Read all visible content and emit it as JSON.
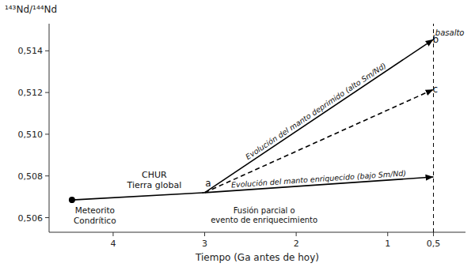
{
  "chart_data": {
    "type": "line",
    "xlabel": "Tiempo (Ga antes de hoy)",
    "ylabel": "¹⁴³Nd/¹⁴⁴Nd",
    "xlim": [
      4.7,
      0.15
    ],
    "ylim": [
      0.5053,
      0.5153
    ],
    "xticks": [
      4,
      3,
      2,
      1,
      {
        "value": 0.5,
        "label": "0,5"
      }
    ],
    "yticks": [
      {
        "value": 0.506,
        "label": "0,506"
      },
      {
        "value": 0.508,
        "label": "0,508"
      },
      {
        "value": 0.51,
        "label": "0,510"
      },
      {
        "value": 0.512,
        "label": "0,512"
      },
      {
        "value": 0.514,
        "label": "0,514"
      }
    ],
    "background_color": "#ffffff",
    "color": "#000000",
    "grid": false,
    "series": [
      {
        "x": [
          4.45,
          3.0
        ],
        "values": [
          0.50685,
          0.5072
        ],
        "line_style": "solid"
      },
      {
        "x": [
          3.0,
          0.5
        ],
        "values": [
          0.5072,
          0.50795
        ],
        "line_style": "solid",
        "marker": "arrow",
        "label": "Evolución del manto enriquecido (bajo Sm/Nd)"
      },
      {
        "x": [
          3.0,
          0.5
        ],
        "values": [
          0.5072,
          0.51455
        ],
        "line_style": "solid",
        "marker": "arrow",
        "label": "Evolución del manto deprimido (alto Sm/Nd)"
      },
      {
        "x": [
          3.0,
          0.5
        ],
        "values": [
          0.5072,
          0.51215
        ],
        "line_style": "dashed",
        "marker": "arrow"
      },
      {
        "type": "scatter",
        "x": [
          4.45
        ],
        "values": [
          0.50685
        ],
        "marker": "circle"
      }
    ],
    "reference_lines": [
      {
        "axis": "x",
        "value": 0.5,
        "line_style": "dashed"
      }
    ],
    "annotations": [
      {
        "text": "CHUR\nTierra global",
        "x": 3.55,
        "y": 0.5073
      },
      {
        "text": "Meteorito\nCondrítico",
        "x": 4.2,
        "y": 0.50655
      },
      {
        "text": "a",
        "x": 2.93,
        "y": 0.5074
      },
      {
        "text": "b",
        "x": 0.51,
        "y": 0.51455
      },
      {
        "text": "c",
        "x": 0.51,
        "y": 0.51215
      },
      {
        "text": "basalto",
        "x": 0.48,
        "y": 0.51485
      },
      {
        "text": "Fusión parcial o\nevento de enriquecimiento",
        "x": 2.35,
        "y": 0.50655
      }
    ]
  }
}
